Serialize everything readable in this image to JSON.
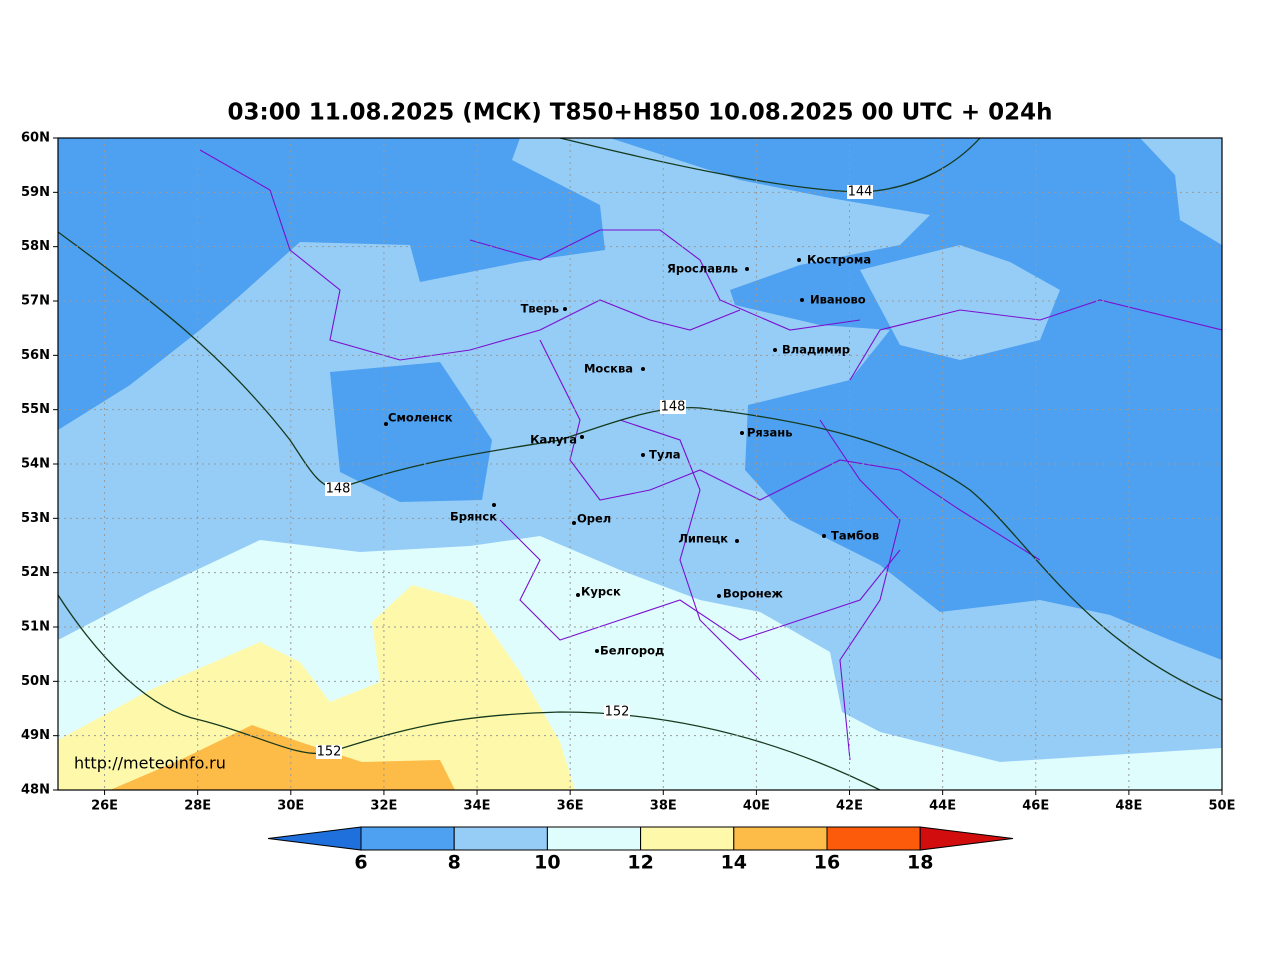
{
  "map": {
    "title": "03:00 11.08.2025 (МСК) T850+H850 10.08.2025 00 UTC + 024h",
    "lat_ticks": [
      "60N",
      "59N",
      "58N",
      "57N",
      "56N",
      "55N",
      "54N",
      "53N",
      "52N",
      "51N",
      "50N",
      "49N",
      "48N"
    ],
    "lon_ticks": [
      "26E",
      "28E",
      "30E",
      "32E",
      "34E",
      "36E",
      "38E",
      "40E",
      "42E",
      "44E",
      "46E",
      "48E",
      "50E"
    ],
    "cities": [
      "Ярославль",
      "Кострома",
      "Иваново",
      "Тверь",
      "Владимир",
      "Москва",
      "Смоленск",
      "Калуга",
      "Рязань",
      "Тула",
      "Брянск",
      "Орел",
      "Липецк",
      "Тамбов",
      "Курск",
      "Воронеж",
      "Белгород"
    ],
    "contour_labels": [
      144,
      148,
      148,
      152,
      152
    ],
    "credit": "http://meteoinfo.ru",
    "colorbar": {
      "ticks": [
        6,
        8,
        10,
        12,
        14,
        16,
        18
      ],
      "under_color": "#1f6fdc",
      "colors": [
        "#4ea0f0",
        "#96cdf7",
        "#e0fdfd",
        "#fef9aa",
        "#fdbb48",
        "#fb5b0a"
      ],
      "over_color": "#d10d0d"
    }
  }
}
